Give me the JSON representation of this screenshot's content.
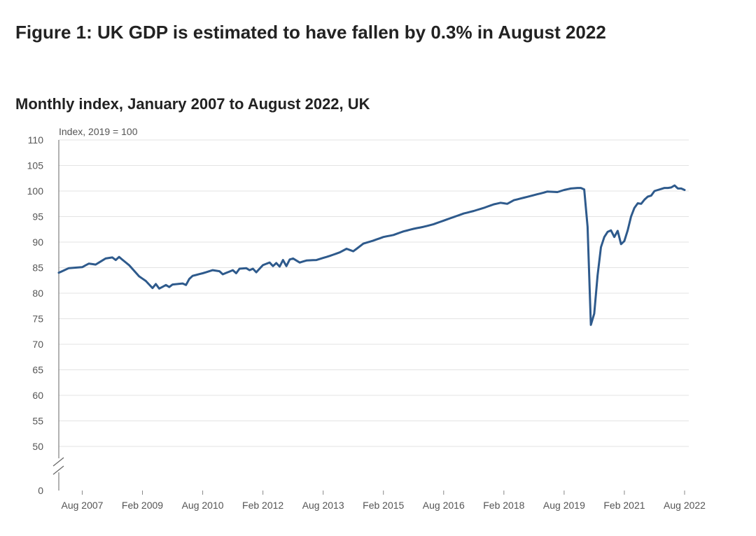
{
  "header": {
    "title": "Figure 1: UK GDP is estimated to have fallen by 0.3% in August 2022",
    "subtitle": "Monthly index, January 2007 to August 2022, UK"
  },
  "chart_data": {
    "type": "line",
    "title": "Figure 1: UK GDP is estimated to have fallen by 0.3% in August 2022",
    "subtitle": "Monthly index, January 2007 to August 2022, UK",
    "ylabel": "Index, 2019 = 100",
    "xlabel": "",
    "x_start": "2007-01",
    "x_end": "2022-08",
    "x_ticks": [
      "Aug 2007",
      "Feb 2009",
      "Aug 2010",
      "Feb 2012",
      "Aug 2013",
      "Feb 2015",
      "Aug 2016",
      "Feb 2018",
      "Aug 2019",
      "Feb 2021",
      "Aug 2022"
    ],
    "y_ticks": [
      0,
      50,
      55,
      60,
      65,
      70,
      75,
      80,
      85,
      90,
      95,
      100,
      105,
      110
    ],
    "ylim": [
      0,
      110
    ],
    "y_axis_break": [
      0,
      50
    ],
    "grid": true,
    "color": "#2e5a8c",
    "series": [
      {
        "anchors": [
          [
            "2007-01",
            84.0
          ],
          [
            "2007-04",
            84.9
          ],
          [
            "2007-08",
            85.1
          ],
          [
            "2007-10",
            85.8
          ],
          [
            "2007-12",
            85.6
          ],
          [
            "2008-03",
            86.8
          ],
          [
            "2008-05",
            87.0
          ],
          [
            "2008-06",
            86.5
          ],
          [
            "2008-07",
            87.1
          ],
          [
            "2008-10",
            85.5
          ],
          [
            "2009-01",
            83.3
          ],
          [
            "2009-03",
            82.4
          ],
          [
            "2009-05",
            81.0
          ],
          [
            "2009-06",
            81.8
          ],
          [
            "2009-07",
            80.9
          ],
          [
            "2009-09",
            81.6
          ],
          [
            "2009-10",
            81.2
          ],
          [
            "2009-11",
            81.7
          ],
          [
            "2010-02",
            81.9
          ],
          [
            "2010-03",
            81.6
          ],
          [
            "2010-04",
            82.8
          ],
          [
            "2010-05",
            83.4
          ],
          [
            "2010-08",
            83.9
          ],
          [
            "2010-11",
            84.5
          ],
          [
            "2011-01",
            84.3
          ],
          [
            "2011-02",
            83.7
          ],
          [
            "2011-05",
            84.5
          ],
          [
            "2011-06",
            83.9
          ],
          [
            "2011-07",
            84.8
          ],
          [
            "2011-09",
            84.9
          ],
          [
            "2011-10",
            84.5
          ],
          [
            "2011-11",
            84.8
          ],
          [
            "2011-12",
            84.1
          ],
          [
            "2012-02",
            85.5
          ],
          [
            "2012-04",
            86.0
          ],
          [
            "2012-05",
            85.3
          ],
          [
            "2012-06",
            85.9
          ],
          [
            "2012-07",
            85.2
          ],
          [
            "2012-08",
            86.5
          ],
          [
            "2012-09",
            85.3
          ],
          [
            "2012-10",
            86.6
          ],
          [
            "2012-11",
            86.8
          ],
          [
            "2013-01",
            86.0
          ],
          [
            "2013-03",
            86.4
          ],
          [
            "2013-06",
            86.5
          ],
          [
            "2013-08",
            86.9
          ],
          [
            "2013-10",
            87.3
          ],
          [
            "2014-01",
            88.0
          ],
          [
            "2014-03",
            88.7
          ],
          [
            "2014-05",
            88.2
          ],
          [
            "2014-08",
            89.7
          ],
          [
            "2014-11",
            90.3
          ],
          [
            "2015-02",
            91.0
          ],
          [
            "2015-05",
            91.4
          ],
          [
            "2015-08",
            92.1
          ],
          [
            "2015-11",
            92.6
          ],
          [
            "2016-02",
            93.0
          ],
          [
            "2016-05",
            93.5
          ],
          [
            "2016-08",
            94.2
          ],
          [
            "2016-11",
            94.9
          ],
          [
            "2017-02",
            95.6
          ],
          [
            "2017-05",
            96.1
          ],
          [
            "2017-08",
            96.7
          ],
          [
            "2017-11",
            97.4
          ],
          [
            "2018-01",
            97.7
          ],
          [
            "2018-03",
            97.5
          ],
          [
            "2018-05",
            98.2
          ],
          [
            "2018-08",
            98.7
          ],
          [
            "2018-11",
            99.2
          ],
          [
            "2019-02",
            99.7
          ],
          [
            "2019-03",
            99.9
          ],
          [
            "2019-06",
            99.8
          ],
          [
            "2019-08",
            100.2
          ],
          [
            "2019-10",
            100.5
          ],
          [
            "2019-12",
            100.6
          ],
          [
            "2020-01",
            100.6
          ],
          [
            "2020-02",
            100.3
          ],
          [
            "2020-03",
            93.0
          ],
          [
            "2020-04",
            73.8
          ],
          [
            "2020-05",
            76.0
          ],
          [
            "2020-06",
            83.5
          ],
          [
            "2020-07",
            89.0
          ],
          [
            "2020-08",
            91.0
          ],
          [
            "2020-09",
            92.0
          ],
          [
            "2020-10",
            92.3
          ],
          [
            "2020-11",
            91.0
          ],
          [
            "2020-12",
            92.2
          ],
          [
            "2021-01",
            89.6
          ],
          [
            "2021-02",
            90.2
          ],
          [
            "2021-03",
            92.3
          ],
          [
            "2021-04",
            95.0
          ],
          [
            "2021-05",
            96.7
          ],
          [
            "2021-06",
            97.6
          ],
          [
            "2021-07",
            97.5
          ],
          [
            "2021-08",
            98.3
          ],
          [
            "2021-09",
            98.9
          ],
          [
            "2021-10",
            99.1
          ],
          [
            "2021-11",
            100.0
          ],
          [
            "2021-12",
            100.2
          ],
          [
            "2022-01",
            100.4
          ],
          [
            "2022-02",
            100.6
          ],
          [
            "2022-03",
            100.6
          ],
          [
            "2022-04",
            100.7
          ],
          [
            "2022-05",
            101.1
          ],
          [
            "2022-06",
            100.5
          ],
          [
            "2022-07",
            100.5
          ],
          [
            "2022-08",
            100.2
          ]
        ]
      }
    ]
  }
}
